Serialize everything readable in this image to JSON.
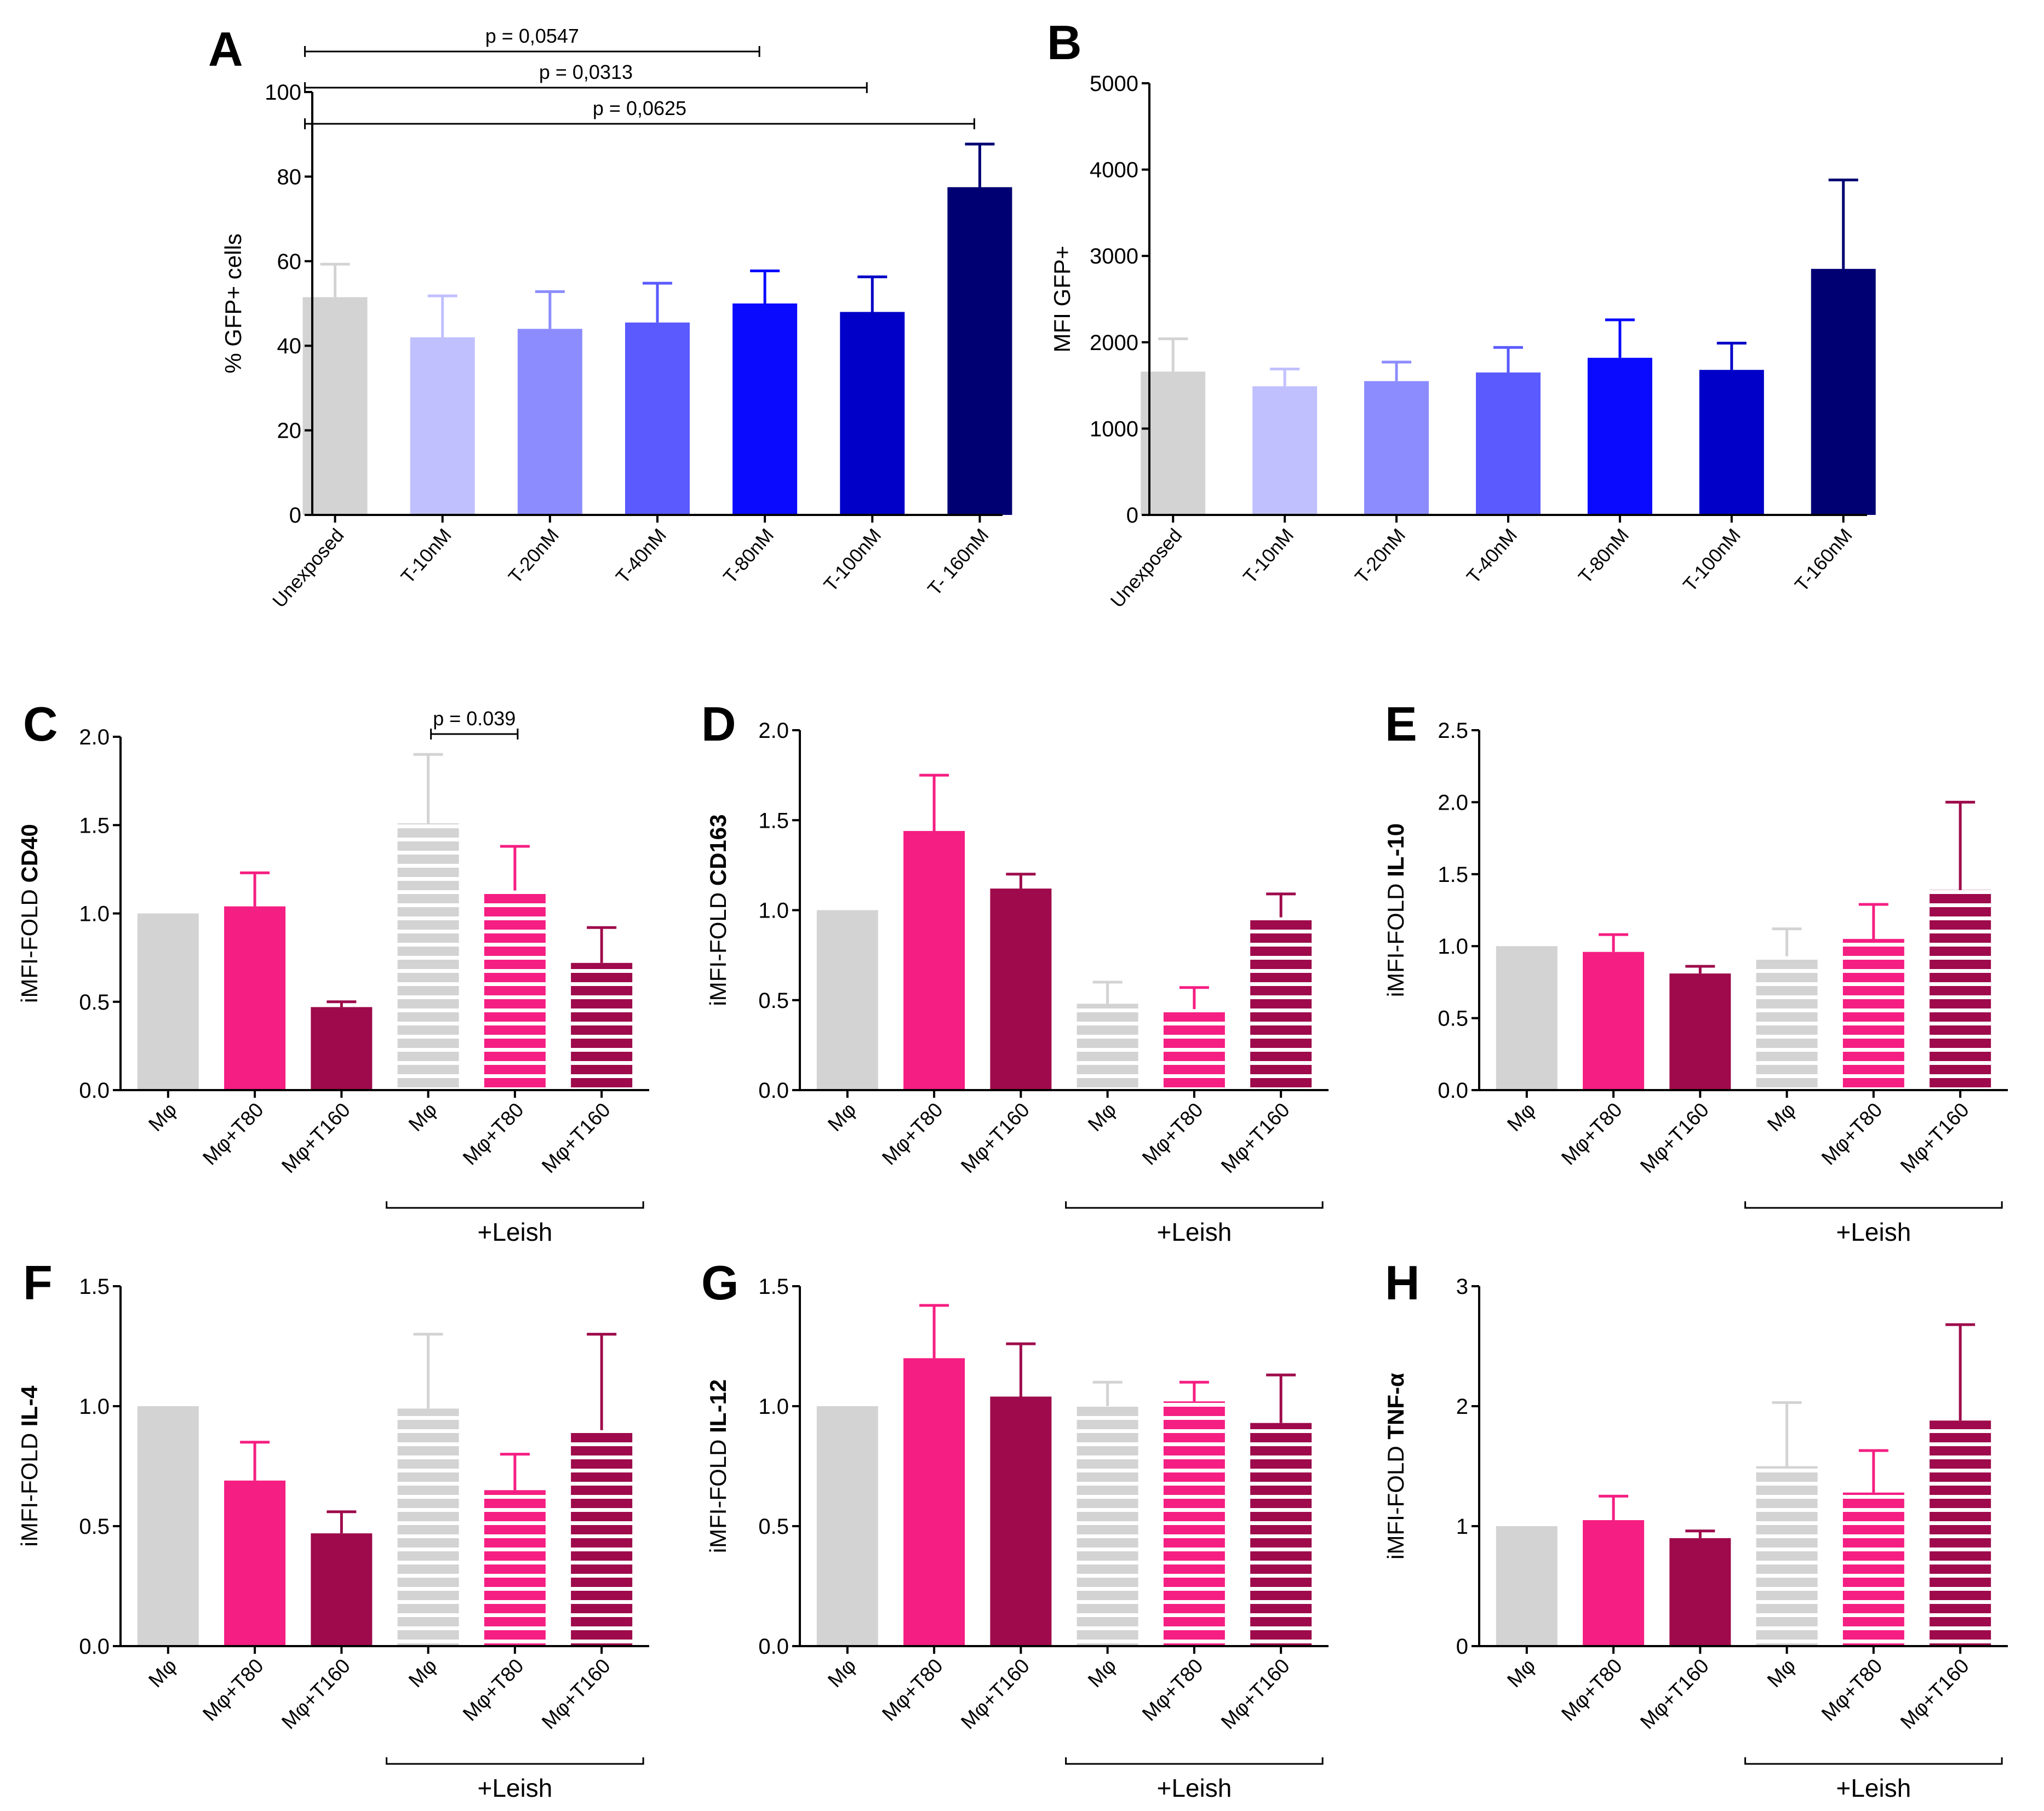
{
  "figure": {
    "colors": {
      "unexposed": "#D3D3D3",
      "t10": "#C0C0FF",
      "t20": "#8C8CFF",
      "t40": "#5A5AFF",
      "t80": "#0A0AFF",
      "t100": "#0000C8",
      "t160": "#000073",
      "mphi": "#D3D3D3",
      "t80pink": "#F51E82",
      "t160pink": "#9E0A4B",
      "axis": "#000000"
    }
  },
  "chart_data": [
    {
      "panel": "A",
      "type": "bar",
      "ylabel": "% GFP+ cells",
      "ylim": [
        0,
        100
      ],
      "yticks": [
        "0",
        "20",
        "40",
        "60",
        "80",
        "100"
      ],
      "categories": [
        "Unexposed",
        "T-10nM",
        "T-20nM",
        "T-40nM",
        "T-80nM",
        "T-100nM",
        "T- 160nM"
      ],
      "values": [
        51.5,
        42,
        44,
        45.5,
        50,
        48,
        77.5
      ],
      "errors": [
        7.8,
        9.8,
        8.8,
        9.3,
        7.7,
        8.3,
        10.2
      ],
      "colors": [
        "unexposed",
        "t10",
        "t20",
        "t40",
        "t80",
        "t100",
        "t160"
      ],
      "hatched": [
        false,
        false,
        false,
        false,
        false,
        false,
        false
      ],
      "brackets": [
        {
          "from": 0,
          "to": 4,
          "label": "p = 0,0547"
        },
        {
          "from": 0,
          "to": 5,
          "label": "p = 0,0313"
        },
        {
          "from": 0,
          "to": 6,
          "label": "p = 0,0625"
        }
      ]
    },
    {
      "panel": "B",
      "type": "bar",
      "ylabel": "MFI GFP+",
      "ylim": [
        0,
        5000
      ],
      "yticks": [
        "0",
        "1000",
        "2000",
        "3000",
        "4000",
        "5000"
      ],
      "categories": [
        "Unexposed",
        "T-10nM",
        "T-20nM",
        "T-40nM",
        "T-80nM",
        "T-100nM",
        "T-160nM"
      ],
      "values": [
        1660,
        1490,
        1550,
        1650,
        1820,
        1680,
        2850
      ],
      "errors": [
        380,
        200,
        220,
        290,
        440,
        310,
        1030
      ],
      "colors": [
        "unexposed",
        "t10",
        "t20",
        "t40",
        "t80",
        "t100",
        "t160"
      ],
      "hatched": [
        false,
        false,
        false,
        false,
        false,
        false,
        false
      ],
      "brackets": []
    },
    {
      "panel": "C",
      "type": "bar",
      "ylabel_prefix": "iMFI-FOLD",
      "ylabel_bold": "CD40",
      "ylim": [
        0,
        2.0
      ],
      "yticks": [
        "0.0",
        "0.5",
        "1.0",
        "1.5",
        "2.0"
      ],
      "categories": [
        "Mφ",
        "Mφ+T80",
        "Mφ+T160",
        "Mφ",
        "Mφ+T80",
        "Mφ+T160"
      ],
      "values": [
        1.0,
        1.04,
        0.47,
        1.51,
        1.13,
        0.72
      ],
      "errors": [
        0,
        0.19,
        0.03,
        0.39,
        0.25,
        0.2
      ],
      "colors": [
        "mphi",
        "t80pink",
        "t160pink",
        "mphi",
        "t80pink",
        "t160pink"
      ],
      "hatched": [
        false,
        false,
        false,
        true,
        true,
        true
      ],
      "group_label": "+Leish",
      "brackets": [
        {
          "from": 3,
          "to": 4,
          "label": "p = 0.039"
        }
      ]
    },
    {
      "panel": "D",
      "type": "bar",
      "ylabel_prefix": "iMFI-FOLD",
      "ylabel_bold": "CD163",
      "ylim": [
        0,
        2.0
      ],
      "yticks": [
        "0.0",
        "0.5",
        "1.0",
        "1.5",
        "2.0"
      ],
      "categories": [
        "Mφ",
        "Mφ+T80",
        "Mφ+T160",
        "Mφ",
        "Mφ+T80",
        "Mφ+T160"
      ],
      "values": [
        1.0,
        1.44,
        1.12,
        0.48,
        0.45,
        0.96
      ],
      "errors": [
        0,
        0.31,
        0.08,
        0.12,
        0.12,
        0.13
      ],
      "colors": [
        "mphi",
        "t80pink",
        "t160pink",
        "mphi",
        "t80pink",
        "t160pink"
      ],
      "hatched": [
        false,
        false,
        false,
        true,
        true,
        true
      ],
      "group_label": "+Leish",
      "brackets": []
    },
    {
      "panel": "E",
      "type": "bar",
      "ylabel_prefix": "iMFI-FOLD",
      "ylabel_bold": "IL-10",
      "ylim": [
        0,
        2.5
      ],
      "yticks": [
        "0.0",
        "0.5",
        "1.0",
        "1.5",
        "2.0",
        "2.5"
      ],
      "categories": [
        "Mφ",
        "Mφ+T80",
        "Mφ+T160",
        "Mφ",
        "Mφ+T80",
        "Mφ+T160"
      ],
      "values": [
        1.0,
        0.96,
        0.81,
        0.93,
        1.05,
        1.39
      ],
      "errors": [
        0,
        0.12,
        0.05,
        0.19,
        0.24,
        0.61
      ],
      "colors": [
        "mphi",
        "t80pink",
        "t160pink",
        "mphi",
        "t80pink",
        "t160pink"
      ],
      "hatched": [
        false,
        false,
        false,
        true,
        true,
        true
      ],
      "group_label": "+Leish",
      "brackets": []
    },
    {
      "panel": "F",
      "type": "bar",
      "ylabel_prefix": "iMFI-FOLD",
      "ylabel_bold": "IL-4",
      "ylim": [
        0,
        1.5
      ],
      "yticks": [
        "0.0",
        "0.5",
        "1.0",
        "1.5"
      ],
      "categories": [
        "Mφ",
        "Mφ+T80",
        "Mφ+T160",
        "Mφ",
        "Mφ+T80",
        "Mφ+T160"
      ],
      "values": [
        1.0,
        0.69,
        0.47,
        0.99,
        0.65,
        0.9
      ],
      "errors": [
        0,
        0.16,
        0.09,
        0.31,
        0.15,
        0.4
      ],
      "colors": [
        "mphi",
        "t80pink",
        "t160pink",
        "mphi",
        "t80pink",
        "t160pink"
      ],
      "hatched": [
        false,
        false,
        false,
        true,
        true,
        true
      ],
      "group_label": "+Leish",
      "brackets": []
    },
    {
      "panel": "G",
      "type": "bar",
      "ylabel_prefix": "iMFI-FOLD",
      "ylabel_bold": "IL-12",
      "ylim": [
        0,
        1.5
      ],
      "yticks": [
        "0.0",
        "0.5",
        "1.0",
        "1.5"
      ],
      "categories": [
        "Mφ",
        "Mφ+T80",
        "Mφ+T160",
        "Mφ",
        "Mφ+T80",
        "Mφ+T160"
      ],
      "values": [
        1.0,
        1.2,
        1.04,
        1.0,
        1.02,
        0.93
      ],
      "errors": [
        0,
        0.22,
        0.22,
        0.1,
        0.08,
        0.2
      ],
      "colors": [
        "mphi",
        "t80pink",
        "t160pink",
        "mphi",
        "t80pink",
        "t160pink"
      ],
      "hatched": [
        false,
        false,
        false,
        true,
        true,
        true
      ],
      "group_label": "+Leish",
      "brackets": []
    },
    {
      "panel": "H",
      "type": "bar",
      "ylabel_prefix": "iMFI-FOLD",
      "ylabel_bold": "TNF-α",
      "ylim": [
        0,
        3
      ],
      "yticks": [
        "0",
        "1",
        "2",
        "3"
      ],
      "categories": [
        "Mφ",
        "Mφ+T80",
        "Mφ+T160",
        "Mφ",
        "Mφ+T80",
        "Mφ+T160"
      ],
      "values": [
        1.0,
        1.05,
        0.9,
        1.5,
        1.28,
        1.88
      ],
      "errors": [
        0,
        0.2,
        0.06,
        0.53,
        0.35,
        0.8
      ],
      "colors": [
        "mphi",
        "t80pink",
        "t160pink",
        "mphi",
        "t80pink",
        "t160pink"
      ],
      "hatched": [
        false,
        false,
        false,
        true,
        true,
        true
      ],
      "group_label": "+Leish",
      "brackets": []
    }
  ]
}
